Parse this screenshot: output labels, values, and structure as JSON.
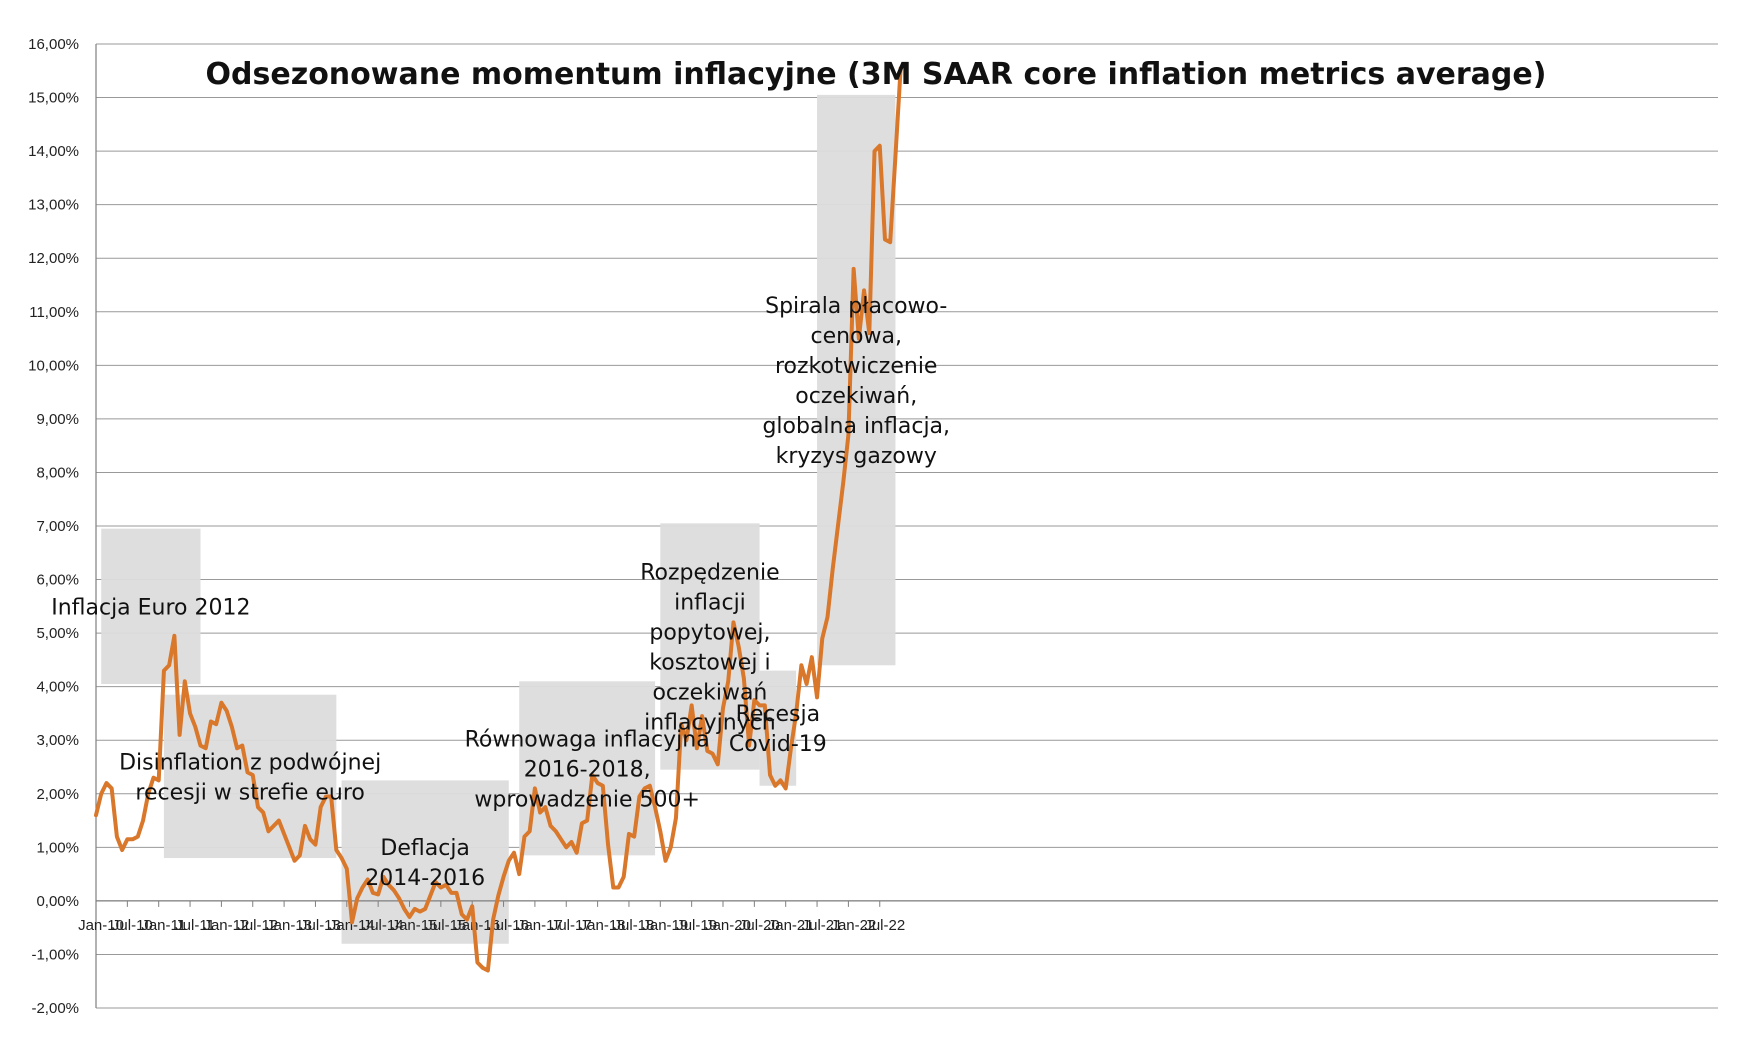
{
  "chart_data": {
    "type": "line",
    "title": "Odsezonowane momentum inflacyjne (3M SAAR core inflation metrics average)",
    "xlabel": "",
    "ylabel": "",
    "ylim": [
      -2,
      16
    ],
    "y_ticks": [
      -2,
      -1,
      0,
      1,
      2,
      3,
      4,
      5,
      6,
      7,
      8,
      9,
      10,
      11,
      12,
      13,
      14,
      15,
      16
    ],
    "y_tick_labels": [
      "-2,00%",
      "-1,00%",
      "0,00%",
      "1,00%",
      "2,00%",
      "3,00%",
      "4,00%",
      "5,00%",
      "6,00%",
      "7,00%",
      "8,00%",
      "9,00%",
      "10,00%",
      "11,00%",
      "12,00%",
      "13,00%",
      "14,00%",
      "15,00%",
      "16,00%"
    ],
    "x_tick_labels": [
      "Jan-10",
      "Jul-10",
      "Jan-11",
      "Jul-11",
      "Jan-12",
      "Jul-12",
      "Jan-13",
      "Jul-13",
      "Jan-14",
      "Jul-14",
      "Jan-15",
      "Jul-15",
      "Jan-16",
      "Jul-16",
      "Jan-17",
      "Jul-17",
      "Jan-18",
      "Jul-18",
      "Jan-19",
      "Jul-19",
      "Jan-20",
      "Jul-20",
      "Jan-21",
      "Jul-21",
      "Jan-22",
      "Jul-22"
    ],
    "x_start": "Jan-10",
    "x_end": "Dec-22",
    "series": [
      {
        "name": "3M SAAR core inflation metrics average",
        "color": "#D9772B",
        "values": [
          1.6,
          2.0,
          2.2,
          2.1,
          1.2,
          0.95,
          1.15,
          1.15,
          1.2,
          1.5,
          2.0,
          2.3,
          2.25,
          4.3,
          4.4,
          4.95,
          3.1,
          4.1,
          3.5,
          3.25,
          2.9,
          2.85,
          3.35,
          3.3,
          3.7,
          3.55,
          3.25,
          2.85,
          2.9,
          2.4,
          2.35,
          1.75,
          1.65,
          1.3,
          1.4,
          1.5,
          1.25,
          1.0,
          0.75,
          0.85,
          1.4,
          1.15,
          1.05,
          1.75,
          1.95,
          1.95,
          0.95,
          0.8,
          0.6,
          -0.4,
          0.05,
          0.25,
          0.4,
          0.15,
          0.12,
          0.45,
          0.3,
          0.2,
          0.05,
          -0.15,
          -0.3,
          -0.15,
          -0.2,
          -0.15,
          0.1,
          0.35,
          0.25,
          0.3,
          0.15,
          0.15,
          -0.25,
          -0.35,
          -0.1,
          -1.15,
          -1.25,
          -1.3,
          -0.35,
          0.1,
          0.45,
          0.75,
          0.9,
          0.5,
          1.2,
          1.3,
          2.1,
          1.65,
          1.75,
          1.4,
          1.3,
          1.15,
          1.0,
          1.1,
          0.9,
          1.45,
          1.5,
          2.35,
          2.2,
          2.15,
          1.05,
          0.25,
          0.25,
          0.45,
          1.25,
          1.2,
          1.95,
          2.1,
          2.15,
          1.75,
          1.3,
          0.75,
          1.0,
          1.55,
          3.3,
          3.0,
          3.65,
          2.85,
          3.45,
          2.8,
          2.75,
          2.55,
          3.6,
          4.1,
          5.2,
          4.75,
          4.15,
          2.9,
          3.75,
          3.65,
          3.65,
          2.35,
          2.15,
          2.25,
          2.1,
          2.85,
          3.5,
          4.4,
          4.05,
          4.55,
          3.8,
          4.9,
          5.3,
          6.2,
          7.0,
          7.8,
          8.7,
          11.8,
          10.5,
          11.4,
          10.6,
          14.0,
          14.1,
          12.35,
          12.3,
          13.9,
          15.55
        ]
      }
    ],
    "annotations": [
      {
        "text": [
          "Inflacja Euro 2012"
        ],
        "x_range": [
          "Feb-10",
          "Sep-11"
        ],
        "y_range": [
          4.05,
          6.95
        ]
      },
      {
        "text": [
          "Disinflation z podwójnej",
          "recesji w strefie euro"
        ],
        "x_range": [
          "Feb-11",
          "Nov-13"
        ],
        "y_range": [
          0.8,
          3.85
        ]
      },
      {
        "text": [
          "Deflacja",
          "2014-2016"
        ],
        "x_range": [
          "Dec-13",
          "Aug-16"
        ],
        "y_range": [
          -0.8,
          2.25
        ]
      },
      {
        "text": [
          "Równowaga inflacyjna",
          "2016-2018,",
          "wprowadzenie 500+"
        ],
        "x_range": [
          "Oct-16",
          "Dec-18"
        ],
        "y_range": [
          0.85,
          4.1
        ]
      },
      {
        "text": [
          "Rozpędzenie",
          "inflacji",
          "popytowej,",
          "kosztowej i",
          "oczekiwań",
          "inflacyjnych"
        ],
        "x_range": [
          "Jan-19",
          "Aug-20"
        ],
        "y_range": [
          2.45,
          7.05
        ]
      },
      {
        "text": [
          "Recesja",
          "Covid-19"
        ],
        "x_range": [
          "Aug-20",
          "Mar-21"
        ],
        "y_range": [
          2.15,
          4.3
        ]
      },
      {
        "text": [
          "Spirala płacowo-",
          "cenowa,",
          "rozkotwiczenie",
          "oczekiwań,",
          "globalna inflacja,",
          "kryzys gazowy"
        ],
        "x_range": [
          "Jul-21",
          "Oct-22"
        ],
        "y_range": [
          4.4,
          15.05
        ]
      }
    ]
  },
  "colors": {
    "line": "#D9772B",
    "gridline": "#999999",
    "axis": "#7f7f7f",
    "annotation_box": "#dcdcdc"
  }
}
